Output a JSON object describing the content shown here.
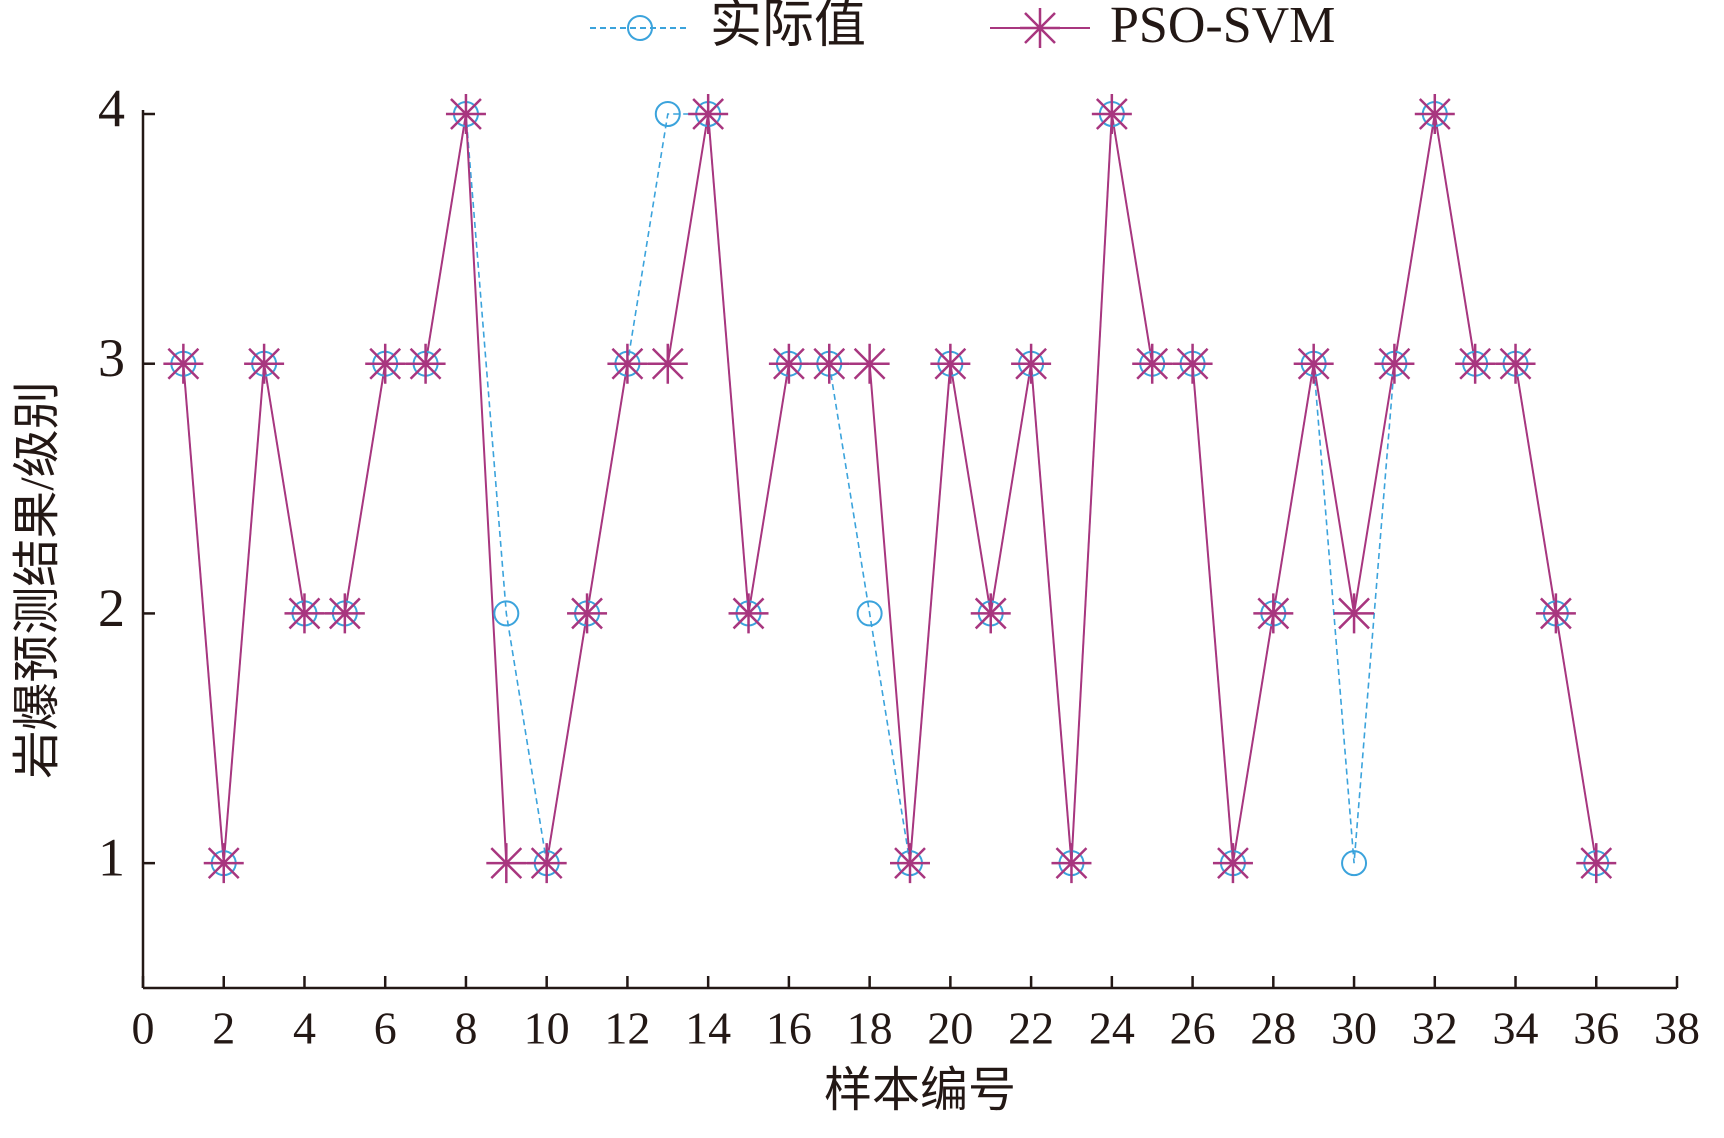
{
  "chart_data": {
    "type": "line",
    "x_label": "样本编号",
    "y_label": "岩爆预测结果/级别",
    "x": [
      1,
      2,
      3,
      4,
      5,
      6,
      7,
      8,
      9,
      10,
      11,
      12,
      13,
      14,
      15,
      16,
      17,
      18,
      19,
      20,
      21,
      22,
      23,
      24,
      25,
      26,
      27,
      28,
      29,
      30,
      31,
      32,
      33,
      34,
      35,
      36
    ],
    "series": [
      {
        "name": "实际值",
        "color": "#3ba3dc",
        "marker": "circle",
        "dashed": true,
        "values": [
          3,
          1,
          3,
          2,
          2,
          3,
          3,
          4,
          2,
          1,
          2,
          3,
          4,
          4,
          2,
          3,
          3,
          2,
          1,
          3,
          2,
          3,
          1,
          4,
          3,
          3,
          1,
          2,
          3,
          1,
          3,
          4,
          3,
          3,
          2,
          1
        ]
      },
      {
        "name": "PSO-SVM",
        "color": "#a8367f",
        "marker": "star",
        "dashed": false,
        "values": [
          3,
          1,
          3,
          2,
          2,
          3,
          3,
          4,
          1,
          1,
          2,
          3,
          3,
          4,
          2,
          3,
          3,
          3,
          1,
          3,
          2,
          3,
          1,
          4,
          3,
          3,
          1,
          2,
          3,
          2,
          3,
          4,
          3,
          3,
          2,
          1
        ]
      }
    ],
    "xlim": [
      0,
      38
    ],
    "xticks": [
      0,
      2,
      4,
      6,
      8,
      10,
      12,
      14,
      16,
      18,
      20,
      22,
      24,
      26,
      28,
      30,
      32,
      34,
      36,
      38
    ],
    "ylim": [
      0.5,
      4
    ],
    "yticks": [
      1,
      2,
      3,
      4
    ],
    "grid": false,
    "legend": "top"
  }
}
